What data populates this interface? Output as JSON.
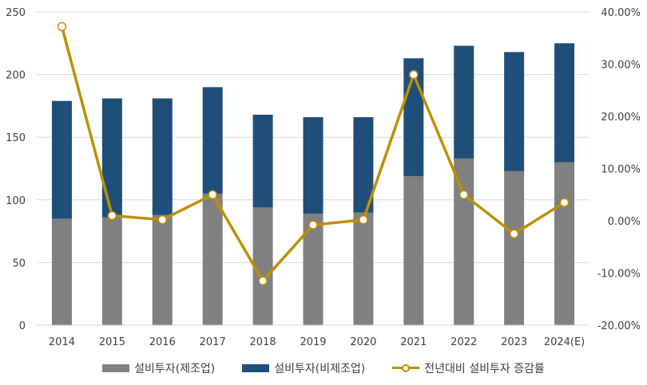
{
  "chart_data": {
    "type": "bar",
    "stacked": true,
    "categories": [
      "2014",
      "2015",
      "2016",
      "2017",
      "2018",
      "2019",
      "2020",
      "2021",
      "2022",
      "2023",
      "2024(E)"
    ],
    "series": [
      {
        "name": "설비투자(제조업)",
        "type": "bar",
        "axis": "left",
        "color": "#808080",
        "values": [
          85,
          86,
          88,
          105,
          94,
          89,
          90,
          119,
          133,
          123,
          130
        ]
      },
      {
        "name": "설비투자(비제조업)",
        "type": "bar",
        "axis": "left",
        "color": "#1f4e79",
        "values": [
          94,
          95,
          93,
          85,
          74,
          77,
          76,
          94,
          90,
          95,
          95
        ]
      },
      {
        "name": "전년대비 설비투자 증감률",
        "type": "line",
        "axis": "right",
        "color": "#bf9000",
        "values": [
          37.2,
          1.0,
          0.2,
          5.0,
          -11.5,
          -0.8,
          0.2,
          28.0,
          5.0,
          -2.5,
          3.5
        ]
      }
    ],
    "left_axis": {
      "min": 0,
      "max": 250,
      "step": 50,
      "tick_labels": [
        "0",
        "50",
        "100",
        "150",
        "200",
        "250"
      ]
    },
    "right_axis": {
      "min": -20,
      "max": 40,
      "step": 10,
      "tick_labels": [
        "-20.00%",
        "-10.00%",
        "0.00%",
        "10.00%",
        "20.00%",
        "30.00%",
        "40.00%"
      ]
    },
    "grid": true,
    "legend_position": "bottom"
  }
}
